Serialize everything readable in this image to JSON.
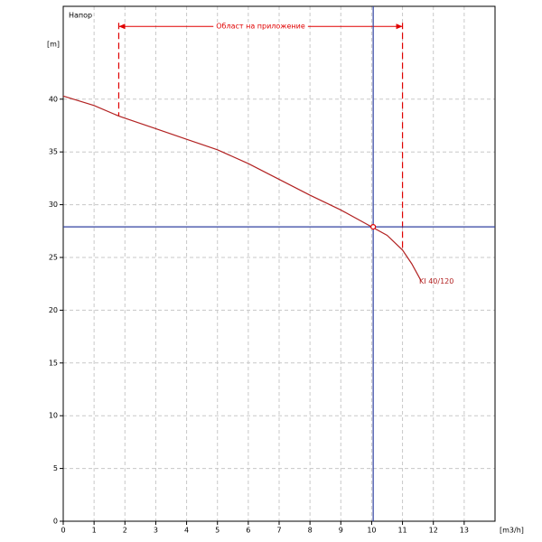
{
  "chart_data": {
    "type": "line",
    "title": "Напор",
    "y_label": "[m]",
    "x_label": "[m3/h]",
    "xlim": [
      0,
      14
    ],
    "ylim": [
      0,
      48.8
    ],
    "xticks": [
      0,
      1,
      2,
      3,
      4,
      5,
      6,
      7,
      8,
      9,
      10,
      11,
      12,
      13
    ],
    "yticks": [
      0,
      5,
      10,
      15,
      20,
      25,
      30,
      35,
      40
    ],
    "grid": true,
    "series": [
      {
        "name": "KI 40/120",
        "color": "#b22222",
        "x": [
          0,
          1,
          1.8,
          2,
          3,
          4,
          5,
          6,
          7,
          8,
          9,
          10,
          10.5,
          11,
          11.3,
          11.6
        ],
        "values": [
          40.3,
          39.4,
          38.4,
          38.2,
          37.2,
          36.2,
          35.2,
          33.9,
          32.4,
          30.9,
          29.5,
          27.9,
          27.1,
          25.7,
          24.4,
          22.8
        ]
      }
    ],
    "range": {
      "label": "Област на приложение",
      "x": [
        1.8,
        11.0
      ],
      "y": 46.9,
      "y_ends": [
        38.4,
        25.7
      ]
    },
    "operating_point": {
      "x": 10.05,
      "y": 27.9
    }
  }
}
